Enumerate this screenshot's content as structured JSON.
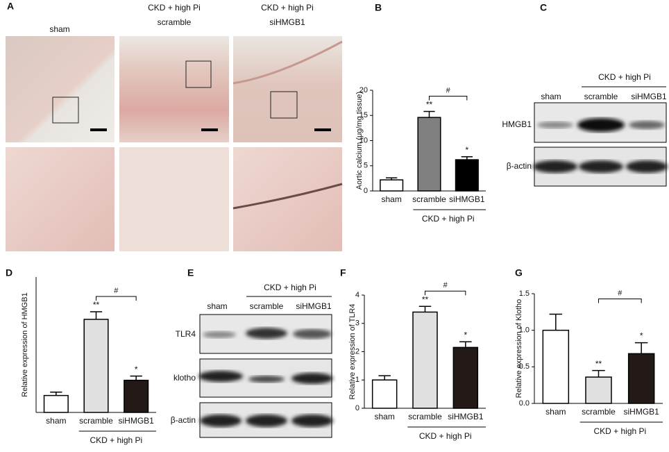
{
  "panel_a": {
    "letter": "A",
    "col1": "sham",
    "col2_top": "CKD + high Pi",
    "col2_bottom": "scramble",
    "col3_top": "CKD + high Pi",
    "col3_bottom": "siHMGB1"
  },
  "panel_c": {
    "letter": "C",
    "group": "CKD + high Pi",
    "lanes": [
      "sham",
      "scramble",
      "siHMGB1"
    ],
    "rows": [
      "HMGB1",
      "β-actin"
    ]
  },
  "panel_e": {
    "letter": "E",
    "group": "CKD + high Pi",
    "lanes": [
      "sham",
      "scramble",
      "siHMGB1"
    ],
    "rows": [
      "TLR4",
      "klotho",
      "β-actin"
    ]
  },
  "chart_data": [
    {
      "type": "bar",
      "panel": "B",
      "ylabel": "Aortic calcium (μg/mg tissue)",
      "categories": [
        "sham",
        "scramble",
        "siHMGB1"
      ],
      "values": [
        2.2,
        14.6,
        6.2
      ],
      "errors": [
        0.4,
        1.2,
        0.6
      ],
      "colors": [
        "#ffffff",
        "#808080",
        "#000000"
      ],
      "significance": [
        null,
        "**",
        "*"
      ],
      "bracket_label": "#",
      "group_label": "CKD + high Pi",
      "ylim": [
        0,
        20
      ],
      "yticks": [
        0,
        5,
        10,
        15,
        20
      ]
    },
    {
      "type": "bar",
      "panel": "D",
      "ylabel": "Relative expression of HMGB1",
      "categories": [
        "sham",
        "scramble",
        "siHMGB1"
      ],
      "values": [
        1.0,
        5.5,
        1.9
      ],
      "errors": [
        0.2,
        0.45,
        0.25
      ],
      "colors": [
        "#ffffff",
        "#e0e0e0",
        "#231a18"
      ],
      "significance": [
        null,
        "**",
        "*"
      ],
      "bracket_label": "#",
      "group_label": "CKD + high Pi",
      "ylim": [
        0,
        8
      ]
    },
    {
      "type": "bar",
      "panel": "F",
      "ylabel": "Relative expression of TLR4",
      "categories": [
        "sham",
        "scramble",
        "siHMGB1"
      ],
      "values": [
        1.0,
        3.4,
        2.15
      ],
      "errors": [
        0.15,
        0.2,
        0.2
      ],
      "colors": [
        "#ffffff",
        "#e0e0e0",
        "#231a18"
      ],
      "significance": [
        null,
        "**",
        "*"
      ],
      "bracket_label": "#",
      "group_label": "CKD + high Pi",
      "ylim": [
        0,
        4
      ],
      "yticks": [
        0,
        1,
        2,
        3,
        4
      ]
    },
    {
      "type": "bar",
      "panel": "G",
      "ylabel": "Relative expression of Klotho",
      "categories": [
        "sham",
        "scramble",
        "siHMGB1"
      ],
      "values": [
        1.0,
        0.36,
        0.68
      ],
      "errors": [
        0.22,
        0.09,
        0.15
      ],
      "colors": [
        "#ffffff",
        "#e0e0e0",
        "#231a18"
      ],
      "significance": [
        null,
        "**",
        "*"
      ],
      "bracket_label": "#",
      "group_label": "CKD + high Pi",
      "ylim": [
        0,
        1.5
      ],
      "yticks": [
        {
          "value": 0,
          "label": "0.0"
        },
        {
          "value": 0.5,
          "label": "0.5"
        },
        {
          "value": 1,
          "label": "1.0"
        },
        {
          "value": 1.5,
          "label": "1.5"
        }
      ]
    }
  ]
}
